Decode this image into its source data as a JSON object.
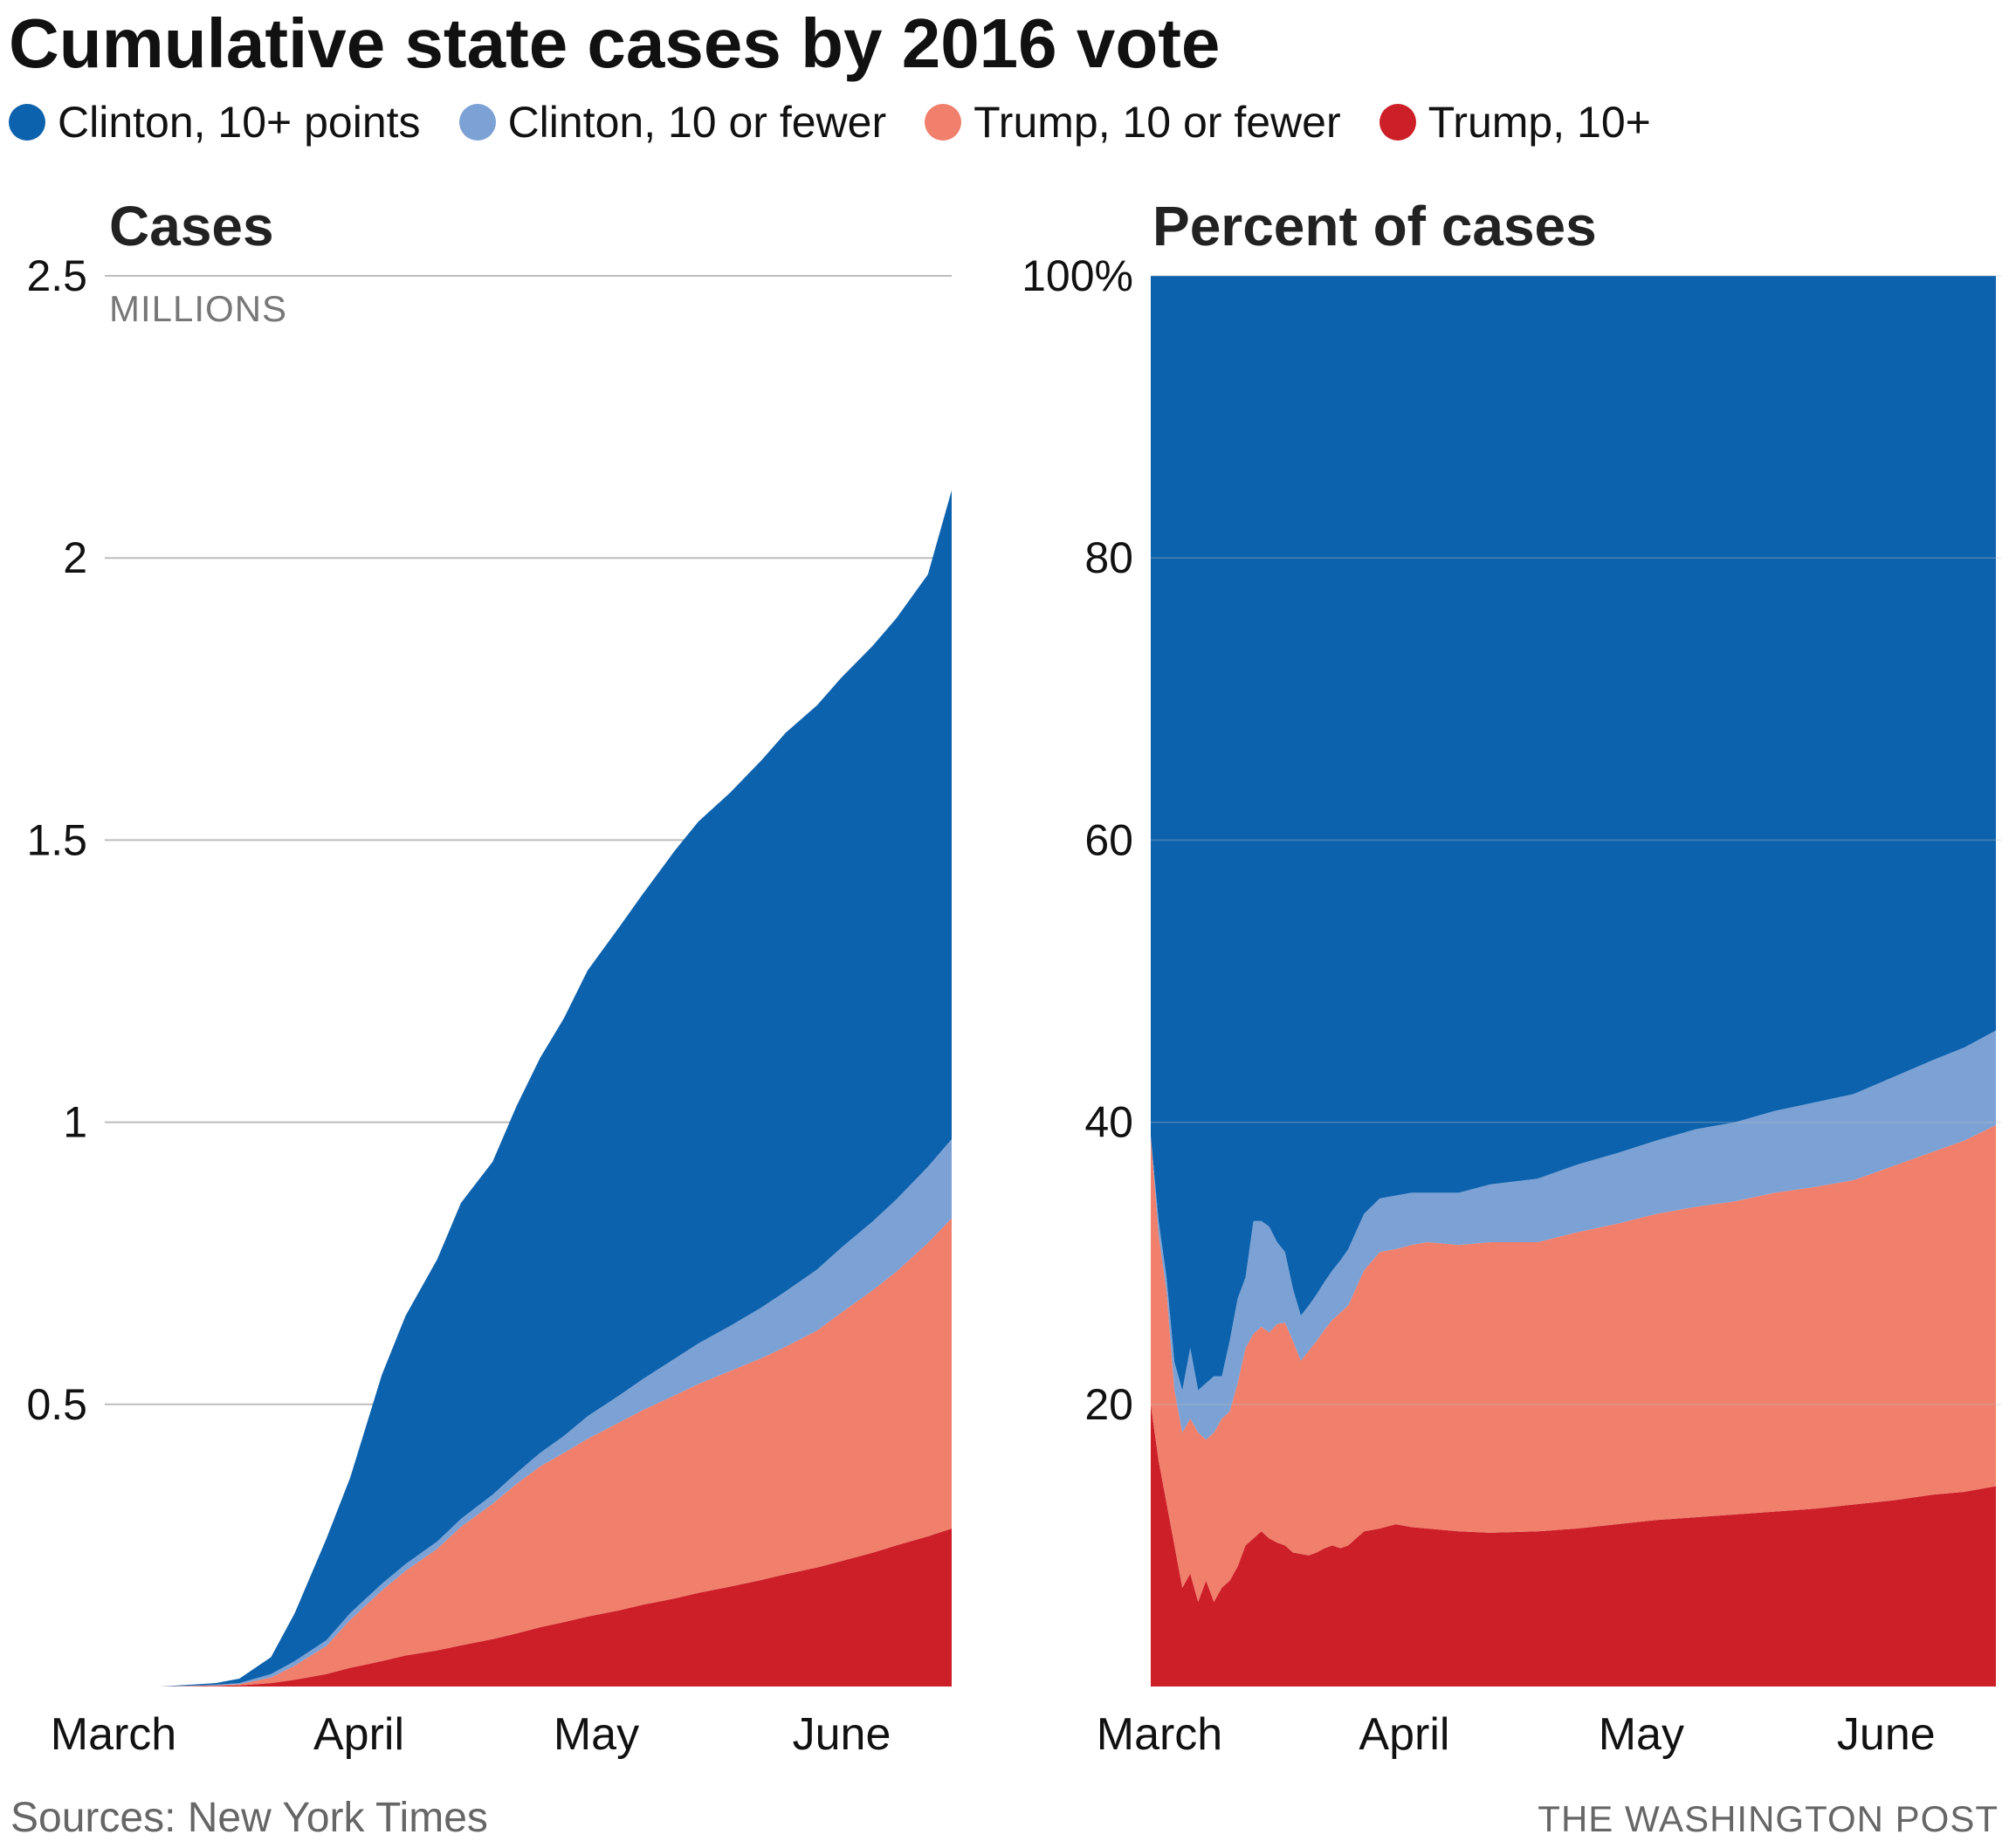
{
  "title": "Cumulative state cases by 2016 vote",
  "legend": [
    {
      "label": "Clinton, 10+ points",
      "color": "#0d62ae"
    },
    {
      "label": "Clinton, 10 or fewer",
      "color": "#7ca2d5"
    },
    {
      "label": "Trump, 10 or fewer",
      "color": "#f07f6c"
    },
    {
      "label": "Trump, 10+",
      "color": "#cc1f27"
    }
  ],
  "source": "Sources: New York Times",
  "credit": "THE WASHINGTON POST",
  "chart_data": [
    {
      "type": "area",
      "stacked": true,
      "title": "Cases",
      "ylabel": "MILLIONS",
      "ylim": [
        0,
        2.5
      ],
      "yticks": [
        0.5,
        1,
        1.5,
        2,
        2.5
      ],
      "ytick_labels": [
        "0.5",
        "1",
        "1.5",
        "2",
        "2.5"
      ],
      "xtick_labels": [
        "March",
        "April",
        "May",
        "June"
      ],
      "xtick_positions": [
        1,
        32,
        62,
        93
      ],
      "xlim": [
        1,
        108
      ],
      "x": [
        1,
        8,
        15,
        18,
        22,
        25,
        29,
        32,
        36,
        39,
        43,
        46,
        50,
        53,
        56,
        59,
        62,
        66,
        69,
        73,
        76,
        80,
        84,
        87,
        91,
        94,
        98,
        101,
        105,
        108
      ],
      "series": [
        {
          "name": "Trump, 10+",
          "color": "#cc1f27",
          "values": [
            0,
            0,
            0.001,
            0.002,
            0.006,
            0.012,
            0.022,
            0.033,
            0.045,
            0.055,
            0.064,
            0.073,
            0.084,
            0.094,
            0.105,
            0.114,
            0.124,
            0.135,
            0.145,
            0.156,
            0.166,
            0.177,
            0.189,
            0.199,
            0.211,
            0.222,
            0.237,
            0.25,
            0.266,
            0.28
          ]
        },
        {
          "name": "Trump, 10 or fewer",
          "color": "#f07f6c",
          "values": [
            0,
            0,
            0.001,
            0.002,
            0.01,
            0.025,
            0.05,
            0.085,
            0.125,
            0.15,
            0.18,
            0.21,
            0.24,
            0.265,
            0.285,
            0.3,
            0.315,
            0.333,
            0.345,
            0.36,
            0.37,
            0.382,
            0.393,
            0.403,
            0.42,
            0.44,
            0.465,
            0.485,
            0.52,
            0.55
          ]
        },
        {
          "name": "Clinton, 10 or fewer",
          "color": "#7ca2d5",
          "values": [
            0,
            0,
            0.001,
            0.002,
            0.006,
            0.008,
            0.01,
            0.012,
            0.012,
            0.012,
            0.013,
            0.014,
            0.016,
            0.019,
            0.024,
            0.03,
            0.04,
            0.048,
            0.055,
            0.065,
            0.072,
            0.08,
            0.09,
            0.098,
            0.108,
            0.115,
            0.122,
            0.128,
            0.135,
            0.14
          ]
        },
        {
          "name": "Clinton, 10+ points",
          "color": "#0d62ae",
          "values": [
            0,
            0,
            0.003,
            0.008,
            0.03,
            0.085,
            0.18,
            0.24,
            0.37,
            0.44,
            0.5,
            0.56,
            0.59,
            0.65,
            0.7,
            0.74,
            0.79,
            0.83,
            0.86,
            0.9,
            0.925,
            0.945,
            0.97,
            0.99,
            1.0,
            1.01,
            1.02,
            1.03,
            1.05,
            1.15
          ]
        }
      ]
    },
    {
      "type": "area",
      "stacked": true,
      "title": "Percent of cases",
      "ylim": [
        0,
        100
      ],
      "yticks": [
        20,
        40,
        60,
        80,
        100
      ],
      "ytick_labels": [
        "20",
        "40",
        "60",
        "80",
        "100%"
      ],
      "xtick_labels": [
        "March",
        "April",
        "May",
        "June"
      ],
      "xtick_positions": [
        1,
        32,
        62,
        93
      ],
      "xlim": [
        1,
        108
      ],
      "x": [
        1,
        2,
        3,
        4,
        5,
        6,
        7,
        8,
        9,
        10,
        11,
        12,
        13,
        14,
        15,
        16,
        17,
        18,
        19,
        20,
        21,
        22,
        23,
        24,
        25,
        26,
        28,
        30,
        32,
        34,
        36,
        40,
        44,
        50,
        55,
        60,
        65,
        70,
        75,
        80,
        85,
        90,
        95,
        100,
        104,
        108
      ],
      "series": [
        {
          "name": "Trump, 10+",
          "color": "#cc1f27",
          "values": [
            20,
            16,
            13,
            10,
            7,
            8,
            6,
            7.5,
            6,
            7,
            7.5,
            8.5,
            10,
            10.5,
            11,
            10.5,
            10.2,
            10,
            9.5,
            9.4,
            9.3,
            9.5,
            9.8,
            10,
            9.8,
            10,
            11,
            11.2,
            11.5,
            11.3,
            11.2,
            11,
            10.9,
            11,
            11.2,
            11.5,
            11.8,
            12,
            12.2,
            12.4,
            12.6,
            12.9,
            13.2,
            13.6,
            13.8,
            14.2
          ]
        },
        {
          "name": "Trump, 10 or fewer",
          "color": "#f07f6c",
          "values": [
            19,
            16,
            15,
            11,
            11,
            11,
            12,
            10,
            12,
            12,
            12,
            13,
            14,
            14.5,
            14.5,
            14.6,
            15.5,
            15.8,
            15,
            13.7,
            14.5,
            15,
            15.5,
            16,
            16.7,
            17,
            18.5,
            19.6,
            19.5,
            20,
            20.3,
            20.3,
            20.6,
            20.5,
            21,
            21.3,
            21.7,
            22,
            22.2,
            22.6,
            22.8,
            23,
            23.7,
            24.3,
            24.9,
            25.6
          ]
        },
        {
          "name": "Clinton, 10 or fewer",
          "color": "#7ca2d5",
          "values": [
            0,
            1,
            1,
            2,
            3,
            5,
            3,
            4,
            4,
            3,
            5,
            6,
            5,
            8,
            7.5,
            7.5,
            5.8,
            5,
            3.7,
            3.2,
            3.2,
            3.3,
            3.4,
            3.5,
            3.7,
            4,
            4,
            3.8,
            3.8,
            3.7,
            3.5,
            3.7,
            4.1,
            4.5,
            4.8,
            5,
            5.2,
            5.5,
            5.6,
            5.8,
            6,
            6.1,
            6.3,
            6.5,
            6.6,
            6.7
          ]
        },
        {
          "name": "Clinton, 10+ points",
          "color": "#0d62ae",
          "values": [
            61,
            67,
            71,
            77,
            79,
            76,
            79,
            78.5,
            78,
            78,
            75.5,
            72.5,
            71,
            67,
            67,
            67.4,
            68.5,
            69.2,
            71.8,
            73.7,
            73,
            72.2,
            71.3,
            70.5,
            69.8,
            69,
            66.5,
            65.4,
            65.2,
            65,
            65,
            65,
            64.4,
            64,
            63,
            62.2,
            61.3,
            60.5,
            60,
            59.2,
            58.6,
            58,
            56.8,
            55.6,
            54.7,
            53.5
          ]
        }
      ]
    }
  ]
}
